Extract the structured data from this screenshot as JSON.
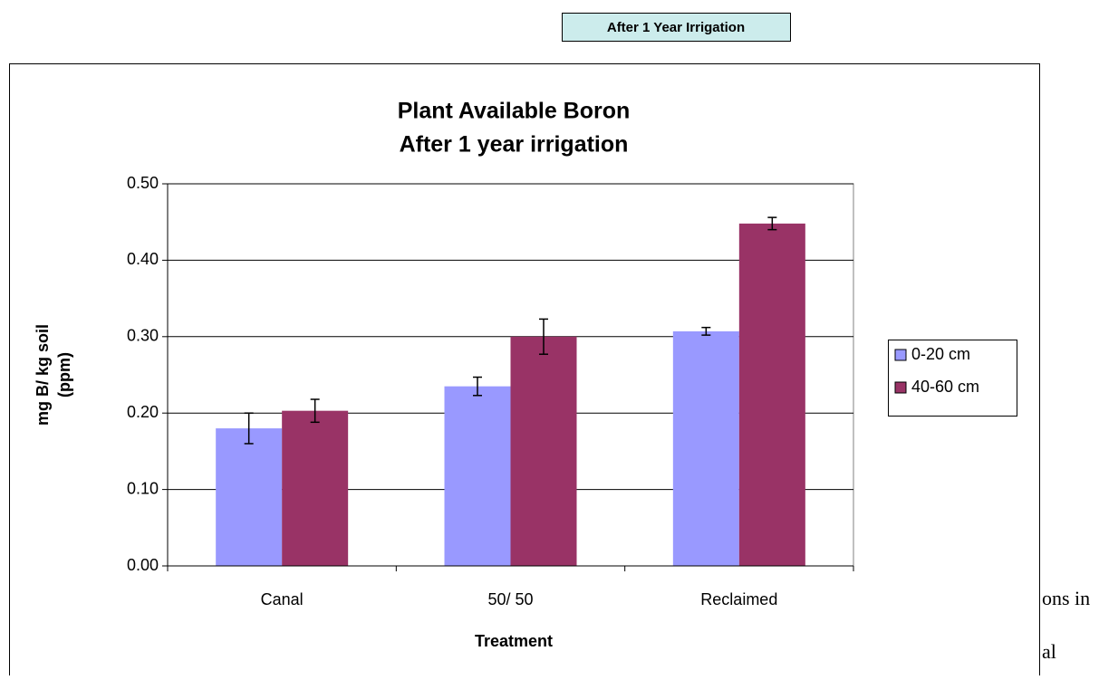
{
  "header": {
    "label": "After 1 Year Irrigation"
  },
  "background_text": [
    "ons in",
    "al"
  ],
  "chart_data": {
    "type": "bar",
    "title": [
      "Plant Available Boron",
      "After 1 year irrigation"
    ],
    "y_label": [
      "mg B/ kg soil",
      "(ppm)"
    ],
    "x_label": "Treatment",
    "categories": [
      "Canal",
      "50/ 50",
      "Reclaimed"
    ],
    "series": [
      {
        "name": "0-20 cm",
        "color": "#9999ff",
        "values": [
          0.18,
          0.235,
          0.307
        ],
        "errors": [
          0.02,
          0.012,
          0.005
        ]
      },
      {
        "name": "40-60 cm",
        "color": "#993366",
        "values": [
          0.203,
          0.3,
          0.448
        ],
        "errors": [
          0.015,
          0.023,
          0.008
        ]
      }
    ],
    "ylim": [
      0,
      0.5
    ],
    "yticks": [
      {
        "value": 0,
        "label": "0.00"
      },
      {
        "value": 0.1,
        "label": "0.10"
      },
      {
        "value": 0.2,
        "label": "0.20"
      },
      {
        "value": 0.3,
        "label": "0.30"
      },
      {
        "value": 0.4,
        "label": "0.40"
      },
      {
        "value": 0.5,
        "label": "0.50"
      }
    ],
    "grid": true,
    "legend": "right"
  }
}
